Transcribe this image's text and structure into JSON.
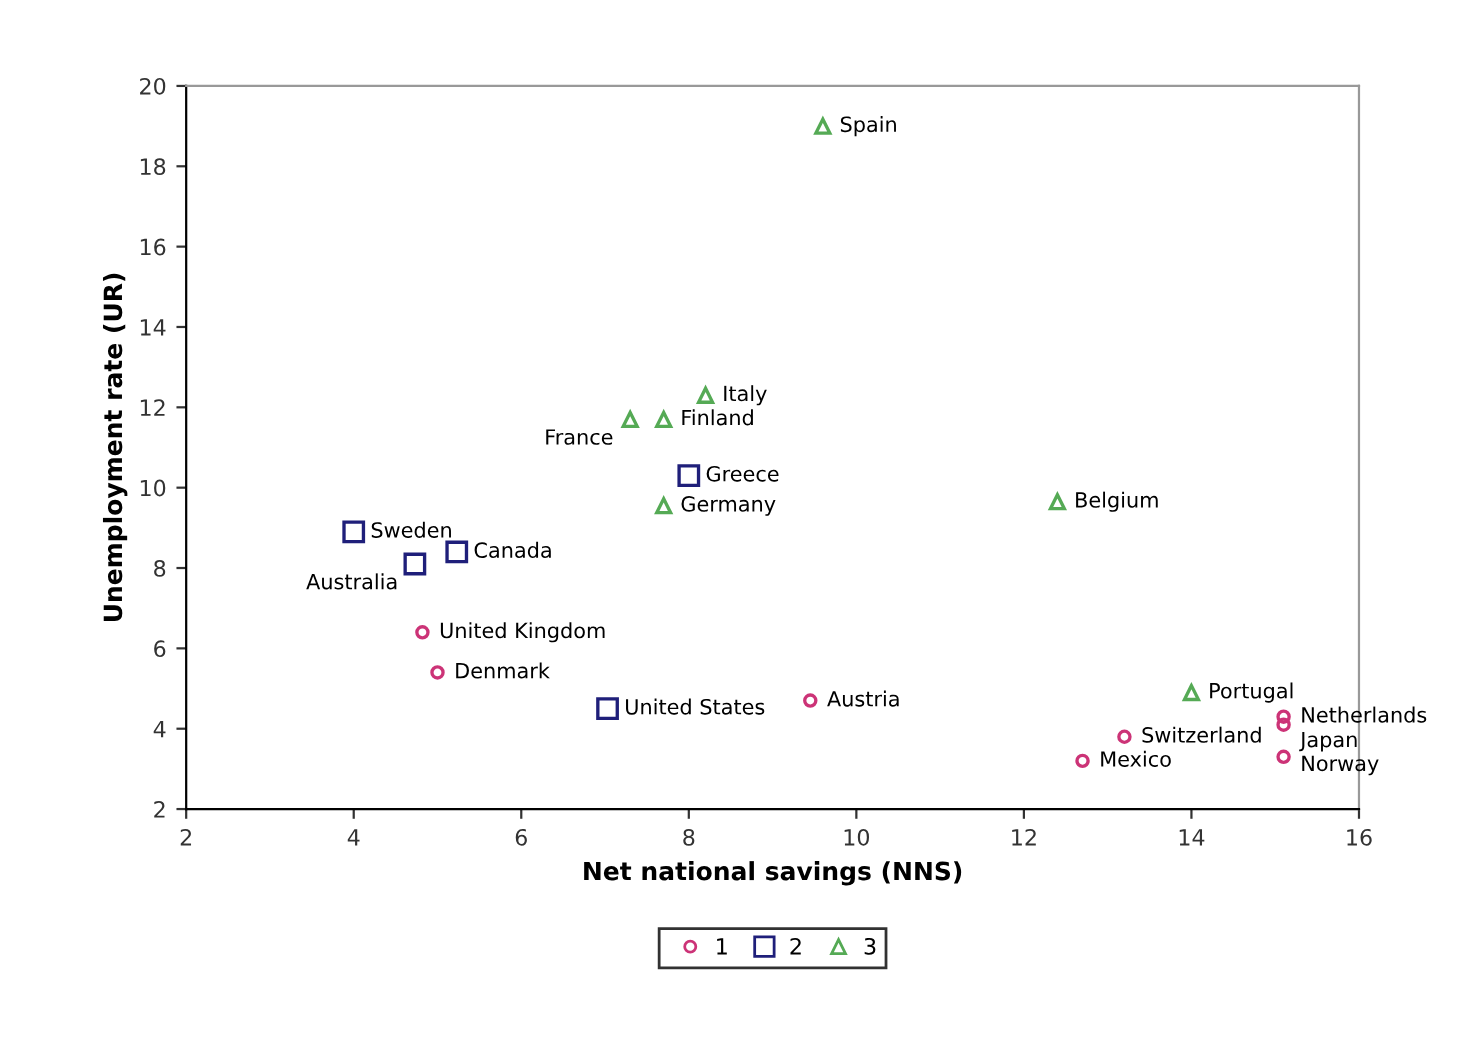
{
  "chart_data": {
    "type": "scatter",
    "xlabel": "Net national savings (NNS)",
    "ylabel": "Unemployment rate (UR)",
    "xlim": [
      2,
      16
    ],
    "ylim": [
      2,
      20
    ],
    "xticks": [
      2,
      4,
      6,
      8,
      10,
      12,
      14,
      16
    ],
    "yticks": [
      2,
      4,
      6,
      8,
      10,
      12,
      14,
      16,
      18,
      20
    ],
    "grid": false,
    "legend": "bottom",
    "series": [
      {
        "name": "1",
        "color": "#cc3377",
        "marker": "circle",
        "x": [
          4.82,
          5.0,
          9.45,
          12.7,
          13.2,
          15.1,
          15.1,
          15.1
        ],
        "values": [
          6.4,
          5.4,
          4.7,
          3.2,
          3.8,
          4.3,
          4.1,
          3.3
        ]
      },
      {
        "name": "2",
        "color": "#1f1f7a",
        "marker": "square",
        "x": [
          4.0,
          5.23,
          4.73,
          8.0,
          7.03
        ],
        "values": [
          8.9,
          8.4,
          8.1,
          10.3,
          4.5
        ]
      },
      {
        "name": "3",
        "color": "#55aa55",
        "marker": "triangle",
        "x": [
          9.6,
          8.2,
          7.3,
          7.7,
          7.7,
          12.4,
          14.0
        ],
        "values": [
          19.0,
          12.3,
          11.7,
          11.7,
          9.55,
          9.65,
          4.9
        ]
      }
    ],
    "annotations": [
      {
        "text": "United Kingdom",
        "x": 4.82,
        "y": 6.4
      },
      {
        "text": "Denmark",
        "x": 5.0,
        "y": 5.4
      },
      {
        "text": "Austria",
        "x": 9.45,
        "y": 4.7
      },
      {
        "text": "Mexico",
        "x": 12.7,
        "y": 3.2
      },
      {
        "text": "Switzerland",
        "x": 13.2,
        "y": 3.8
      },
      {
        "text": "Netherlands",
        "x": 15.1,
        "y": 4.3
      },
      {
        "text": "Japan",
        "x": 15.1,
        "y": 4.1
      },
      {
        "text": "Norway",
        "x": 15.1,
        "y": 3.3
      },
      {
        "text": "Sweden",
        "x": 4.0,
        "y": 8.9
      },
      {
        "text": "Canada",
        "x": 5.23,
        "y": 8.4
      },
      {
        "text": "Australia",
        "x": 4.73,
        "y": 8.1
      },
      {
        "text": "Greece",
        "x": 8.0,
        "y": 10.3
      },
      {
        "text": "United States",
        "x": 7.03,
        "y": 4.5
      },
      {
        "text": "Spain",
        "x": 9.6,
        "y": 19.0
      },
      {
        "text": "Italy",
        "x": 8.2,
        "y": 12.3
      },
      {
        "text": "France",
        "x": 7.3,
        "y": 11.7
      },
      {
        "text": "Finland",
        "x": 7.7,
        "y": 11.7
      },
      {
        "text": "Germany",
        "x": 7.7,
        "y": 9.55
      },
      {
        "text": "Belgium",
        "x": 12.4,
        "y": 9.65
      },
      {
        "text": "Portugal",
        "x": 14.0,
        "y": 4.9
      }
    ]
  }
}
